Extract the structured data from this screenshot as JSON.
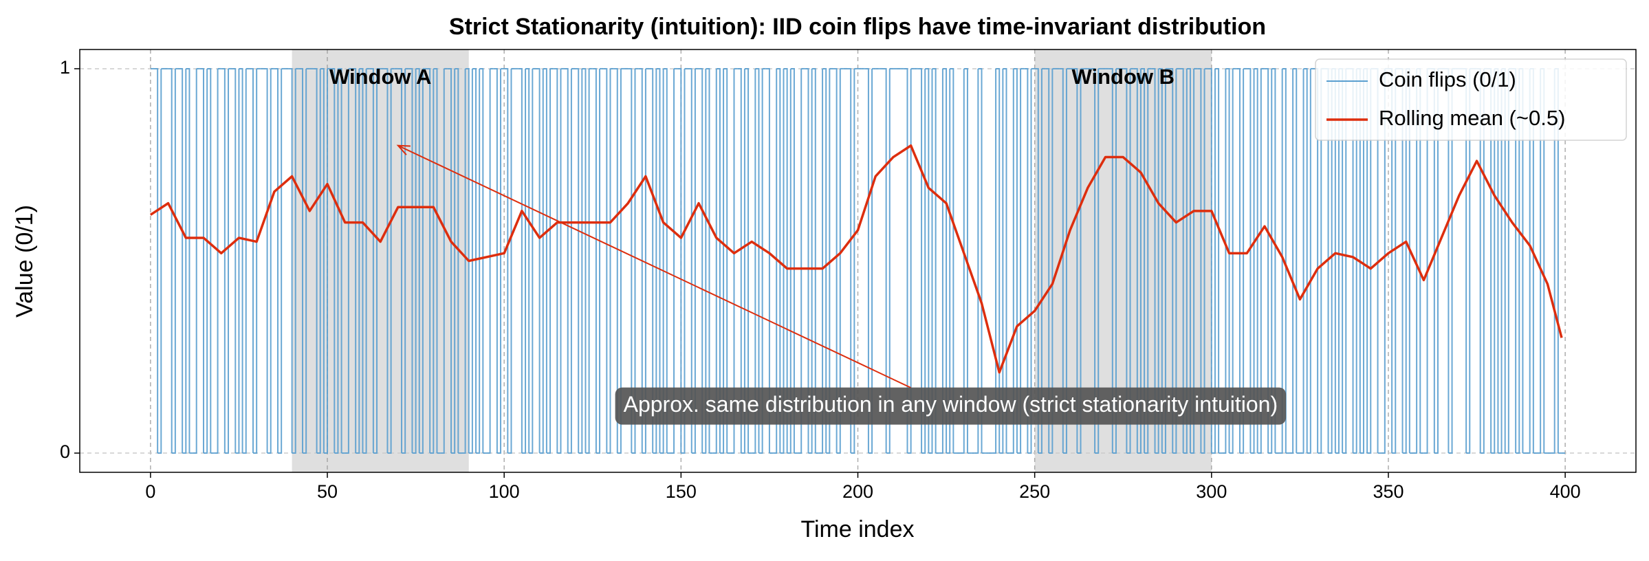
{
  "chart_data": {
    "type": "line",
    "title": "Strict Stationarity (intuition): IID coin flips have time-invariant distribution",
    "xlabel": "Time index",
    "ylabel": "Value (0/1)",
    "xlim": [
      -20,
      420
    ],
    "ylim": [
      -0.05,
      1.05
    ],
    "xticks": [
      0,
      50,
      100,
      150,
      200,
      250,
      300,
      350,
      400
    ],
    "yticks": [
      0,
      1
    ],
    "grid": true,
    "legend": "upper right",
    "windows": [
      {
        "label": "Window A",
        "range": [
          40,
          90
        ]
      },
      {
        "label": "Window B",
        "range": [
          250,
          300
        ]
      }
    ],
    "annotation": {
      "text": "Approx. same distribution in any window (strict stationarity intuition)",
      "xy": [
        70,
        0.8
      ],
      "xytext": [
        215,
        0.17
      ]
    },
    "series": [
      {
        "name": "Coin flips (0/1)",
        "color": "#5a9fcf",
        "step": true,
        "values": [
          1,
          1,
          0,
          1,
          1,
          1,
          0,
          1,
          1,
          0,
          1,
          0,
          0,
          1,
          1,
          0,
          1,
          0,
          0,
          1,
          1,
          0,
          1,
          1,
          0,
          1,
          0,
          1,
          1,
          0,
          1,
          1,
          1,
          0,
          1,
          1,
          0,
          1,
          1,
          1,
          0,
          1,
          1,
          0,
          1,
          1,
          1,
          0,
          1,
          0,
          1,
          1,
          0,
          1,
          0,
          0,
          1,
          1,
          0,
          1,
          0,
          1,
          1,
          0,
          1,
          1,
          1,
          0,
          1,
          1,
          1,
          0,
          1,
          1,
          0,
          1,
          0,
          1,
          1,
          0,
          1,
          0,
          0,
          1,
          1,
          0,
          1,
          0,
          0,
          1,
          0,
          1,
          0,
          1,
          0,
          0,
          1,
          1,
          0,
          1,
          1,
          0,
          1,
          1,
          1,
          0,
          1,
          0,
          1,
          1,
          0,
          1,
          0,
          1,
          1,
          0,
          1,
          1,
          0,
          1,
          1,
          0,
          1,
          0,
          1,
          1,
          0,
          1,
          1,
          0,
          1,
          1,
          0,
          1,
          1,
          1,
          0,
          1,
          1,
          0,
          1,
          1,
          0,
          1,
          0,
          1,
          0,
          0,
          1,
          1,
          0,
          1,
          1,
          0,
          1,
          1,
          0,
          1,
          0,
          0,
          1,
          0,
          1,
          0,
          0,
          1,
          1,
          0,
          1,
          0,
          0,
          1,
          0,
          1,
          1,
          0,
          0,
          1,
          0,
          1,
          0,
          1,
          0,
          0,
          1,
          1,
          0,
          1,
          0,
          0,
          1,
          0,
          1,
          1,
          0,
          1,
          1,
          1,
          0,
          1,
          1,
          1,
          1,
          0,
          1,
          1,
          1,
          1,
          0,
          1,
          1,
          1,
          1,
          1,
          0,
          1,
          1,
          1,
          0,
          1,
          0,
          1,
          0,
          0,
          1,
          0,
          1,
          0,
          0,
          0,
          1,
          0,
          0,
          0,
          1,
          0,
          0,
          0,
          0,
          1,
          0,
          1,
          0,
          0,
          1,
          0,
          1,
          1,
          0,
          1,
          1,
          0,
          1,
          1,
          0,
          1,
          1,
          1,
          0,
          1,
          1,
          1,
          0,
          1,
          1,
          1,
          1,
          0,
          1,
          1,
          1,
          1,
          0,
          1,
          1,
          1,
          0,
          1,
          1,
          0,
          1,
          0,
          1,
          1,
          0,
          1,
          0,
          1,
          1,
          0,
          1,
          1,
          0,
          1,
          0,
          1,
          1,
          0,
          1,
          1,
          0,
          1,
          0,
          0,
          1,
          0,
          1,
          1,
          0,
          1,
          1,
          0,
          1,
          0,
          1,
          1,
          0,
          1,
          0,
          0,
          1,
          0,
          0,
          1,
          0,
          0,
          1,
          0,
          1,
          1,
          0,
          1,
          1,
          0,
          1,
          0,
          1,
          0,
          1,
          1,
          0,
          1,
          0,
          1,
          0,
          1,
          1,
          0,
          0,
          1,
          1,
          0,
          1,
          1,
          0,
          1,
          0,
          0,
          1,
          0,
          0,
          1,
          1,
          0,
          1,
          1,
          1,
          0,
          1,
          1,
          1,
          1,
          0,
          1,
          1,
          1,
          0,
          1,
          1,
          0,
          1,
          0,
          1,
          0,
          1,
          1,
          0,
          1,
          0,
          0,
          1,
          0,
          0,
          1,
          0,
          0,
          0,
          1,
          0,
          0
        ]
      },
      {
        "name": "Rolling mean (~0.5)",
        "color": "#dd2e0e",
        "x": [
          0,
          5,
          10,
          15,
          20,
          25,
          30,
          35,
          40,
          45,
          50,
          55,
          60,
          65,
          70,
          75,
          80,
          85,
          90,
          95,
          100,
          105,
          110,
          115,
          120,
          125,
          130,
          135,
          140,
          145,
          150,
          155,
          160,
          165,
          170,
          175,
          180,
          185,
          190,
          195,
          200,
          205,
          210,
          215,
          220,
          225,
          230,
          235,
          240,
          245,
          250,
          255,
          260,
          265,
          270,
          275,
          280,
          285,
          290,
          295,
          300,
          305,
          310,
          315,
          320,
          325,
          330,
          335,
          340,
          345,
          350,
          355,
          360,
          365,
          370,
          375,
          380,
          385,
          390,
          395,
          399
        ],
        "values": [
          0.62,
          0.65,
          0.56,
          0.56,
          0.52,
          0.56,
          0.55,
          0.68,
          0.72,
          0.63,
          0.7,
          0.6,
          0.6,
          0.55,
          0.64,
          0.64,
          0.64,
          0.55,
          0.5,
          0.51,
          0.52,
          0.63,
          0.56,
          0.6,
          0.6,
          0.6,
          0.6,
          0.65,
          0.72,
          0.6,
          0.56,
          0.65,
          0.56,
          0.52,
          0.55,
          0.52,
          0.48,
          0.48,
          0.48,
          0.52,
          0.58,
          0.72,
          0.77,
          0.8,
          0.69,
          0.65,
          0.52,
          0.39,
          0.21,
          0.33,
          0.37,
          0.44,
          0.58,
          0.69,
          0.77,
          0.77,
          0.73,
          0.65,
          0.6,
          0.63,
          0.63,
          0.52,
          0.52,
          0.59,
          0.51,
          0.4,
          0.48,
          0.52,
          0.51,
          0.48,
          0.52,
          0.55,
          0.45,
          0.56,
          0.67,
          0.76,
          0.67,
          0.6,
          0.54,
          0.44,
          0.3
        ]
      }
    ]
  }
}
